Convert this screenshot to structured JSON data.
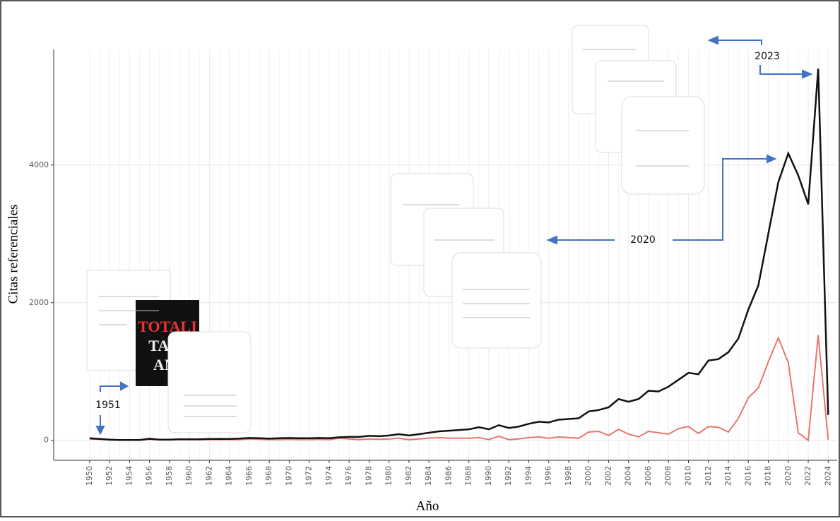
{
  "chart_data": {
    "type": "line",
    "x_label": "Año",
    "y_label": "Citas referenciales",
    "x": [
      1950,
      1951,
      1952,
      1953,
      1954,
      1955,
      1956,
      1957,
      1958,
      1959,
      1960,
      1961,
      1962,
      1963,
      1964,
      1965,
      1966,
      1967,
      1968,
      1969,
      1970,
      1971,
      1972,
      1973,
      1974,
      1975,
      1976,
      1977,
      1978,
      1979,
      1980,
      1981,
      1982,
      1983,
      1984,
      1985,
      1986,
      1987,
      1988,
      1989,
      1990,
      1991,
      1992,
      1993,
      1994,
      1995,
      1996,
      1997,
      1998,
      1999,
      2000,
      2001,
      2002,
      2003,
      2004,
      2005,
      2006,
      2007,
      2008,
      2009,
      2010,
      2011,
      2012,
      2013,
      2014,
      2015,
      2016,
      2017,
      2018,
      2019,
      2020,
      2021,
      2022,
      2023,
      2024
    ],
    "series": [
      {
        "color": "#111111",
        "values": [
          30,
          20,
          10,
          5,
          5,
          5,
          20,
          10,
          10,
          15,
          15,
          15,
          20,
          20,
          20,
          25,
          35,
          30,
          25,
          30,
          35,
          30,
          30,
          35,
          30,
          45,
          50,
          50,
          65,
          60,
          70,
          90,
          70,
          90,
          110,
          130,
          140,
          150,
          160,
          190,
          160,
          220,
          180,
          200,
          240,
          270,
          260,
          300,
          310,
          320,
          420,
          440,
          480,
          600,
          560,
          600,
          720,
          710,
          780,
          880,
          980,
          960,
          1160,
          1180,
          1280,
          1480,
          1900,
          2250,
          3000,
          3750,
          4170,
          3850,
          3430,
          5400,
          370
        ]
      },
      {
        "color": "#e8766b",
        "values": [
          20,
          15,
          5,
          5,
          5,
          5,
          30,
          10,
          10,
          10,
          10,
          10,
          10,
          10,
          10,
          10,
          20,
          15,
          10,
          10,
          15,
          10,
          10,
          15,
          10,
          30,
          20,
          10,
          20,
          15,
          20,
          30,
          10,
          20,
          30,
          40,
          30,
          30,
          30,
          40,
          10,
          60,
          10,
          20,
          40,
          50,
          30,
          50,
          40,
          30,
          120,
          130,
          70,
          160,
          90,
          50,
          130,
          110,
          90,
          170,
          200,
          100,
          200,
          190,
          120,
          320,
          620,
          760,
          1140,
          1490,
          1130,
          110,
          0,
          1530,
          10
        ]
      }
    ],
    "xlim": [
      1946.4,
      2024.9
    ],
    "ylim": [
      -290,
      5680
    ],
    "xticks": [
      1950,
      1952,
      1954,
      1956,
      1958,
      1960,
      1962,
      1964,
      1966,
      1968,
      1970,
      1972,
      1974,
      1976,
      1978,
      1980,
      1982,
      1984,
      1986,
      1988,
      1990,
      1992,
      1994,
      1996,
      1998,
      2000,
      2002,
      2004,
      2006,
      2008,
      2010,
      2012,
      2014,
      2016,
      2018,
      2020,
      2022,
      2024
    ],
    "yticks": [
      0,
      2000,
      4000
    ],
    "grid": true,
    "annotations": [
      "1951",
      "2020",
      "2023"
    ]
  }
}
